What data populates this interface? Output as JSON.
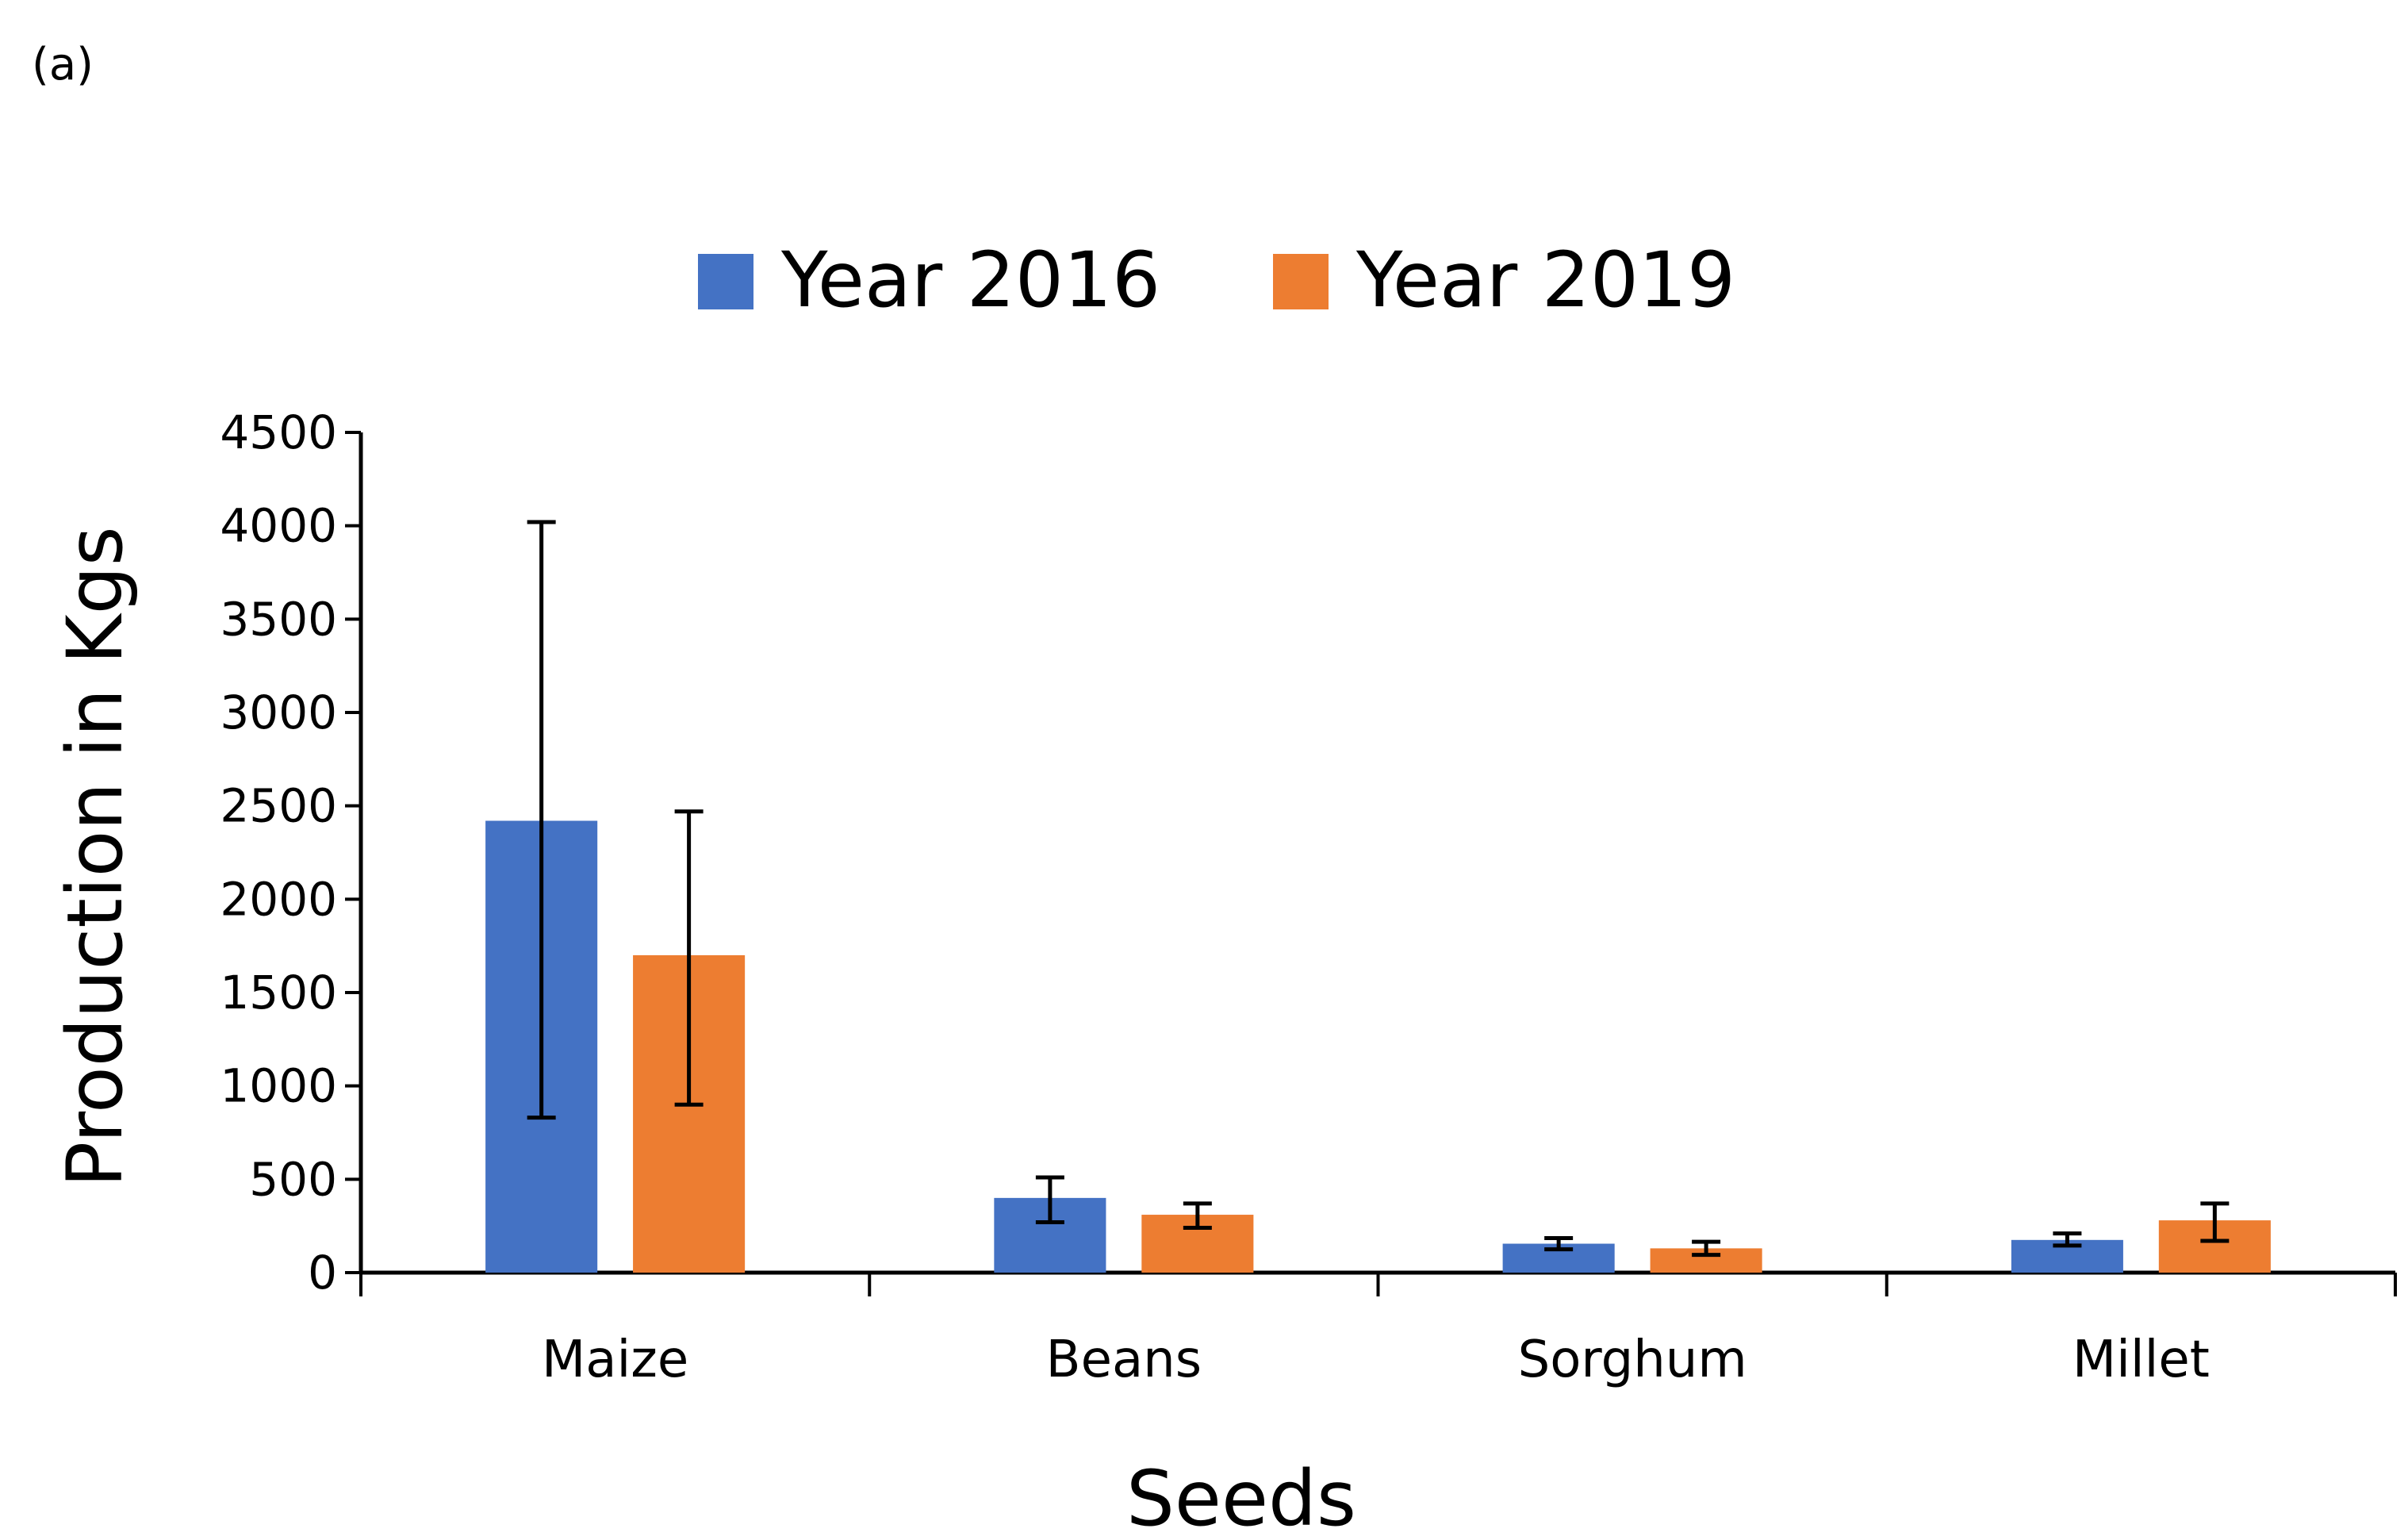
{
  "panel_label": "(a)",
  "colors": {
    "series_2016": "#4472C4",
    "series_2019": "#ED7D31",
    "axis": "#000000"
  },
  "chart_data": {
    "type": "bar",
    "title": "",
    "xlabel": "Seeds",
    "ylabel": "Production in Kgs",
    "ylim": [
      0,
      4500
    ],
    "yticks": [
      0,
      500,
      1000,
      1500,
      2000,
      2500,
      3000,
      3500,
      4000,
      4500
    ],
    "ytick_labels": [
      "0",
      "500",
      "1000",
      "1500",
      "2000",
      "2500",
      "3000",
      "3500",
      "4000",
      "4500"
    ],
    "categories": [
      "Maize",
      "Beans",
      "Sorghum",
      "Millet"
    ],
    "grid": false,
    "legend_position": "top-center",
    "series": [
      {
        "name": "Year 2016",
        "values": [
          2420,
          400,
          155,
          175
        ],
        "error_low": [
          830,
          270,
          125,
          145
        ],
        "error_high": [
          4020,
          510,
          185,
          210
        ]
      },
      {
        "name": "Year 2019",
        "values": [
          1700,
          310,
          130,
          280
        ],
        "error_low": [
          900,
          240,
          95,
          170
        ],
        "error_high": [
          2470,
          370,
          165,
          370
        ]
      }
    ]
  }
}
